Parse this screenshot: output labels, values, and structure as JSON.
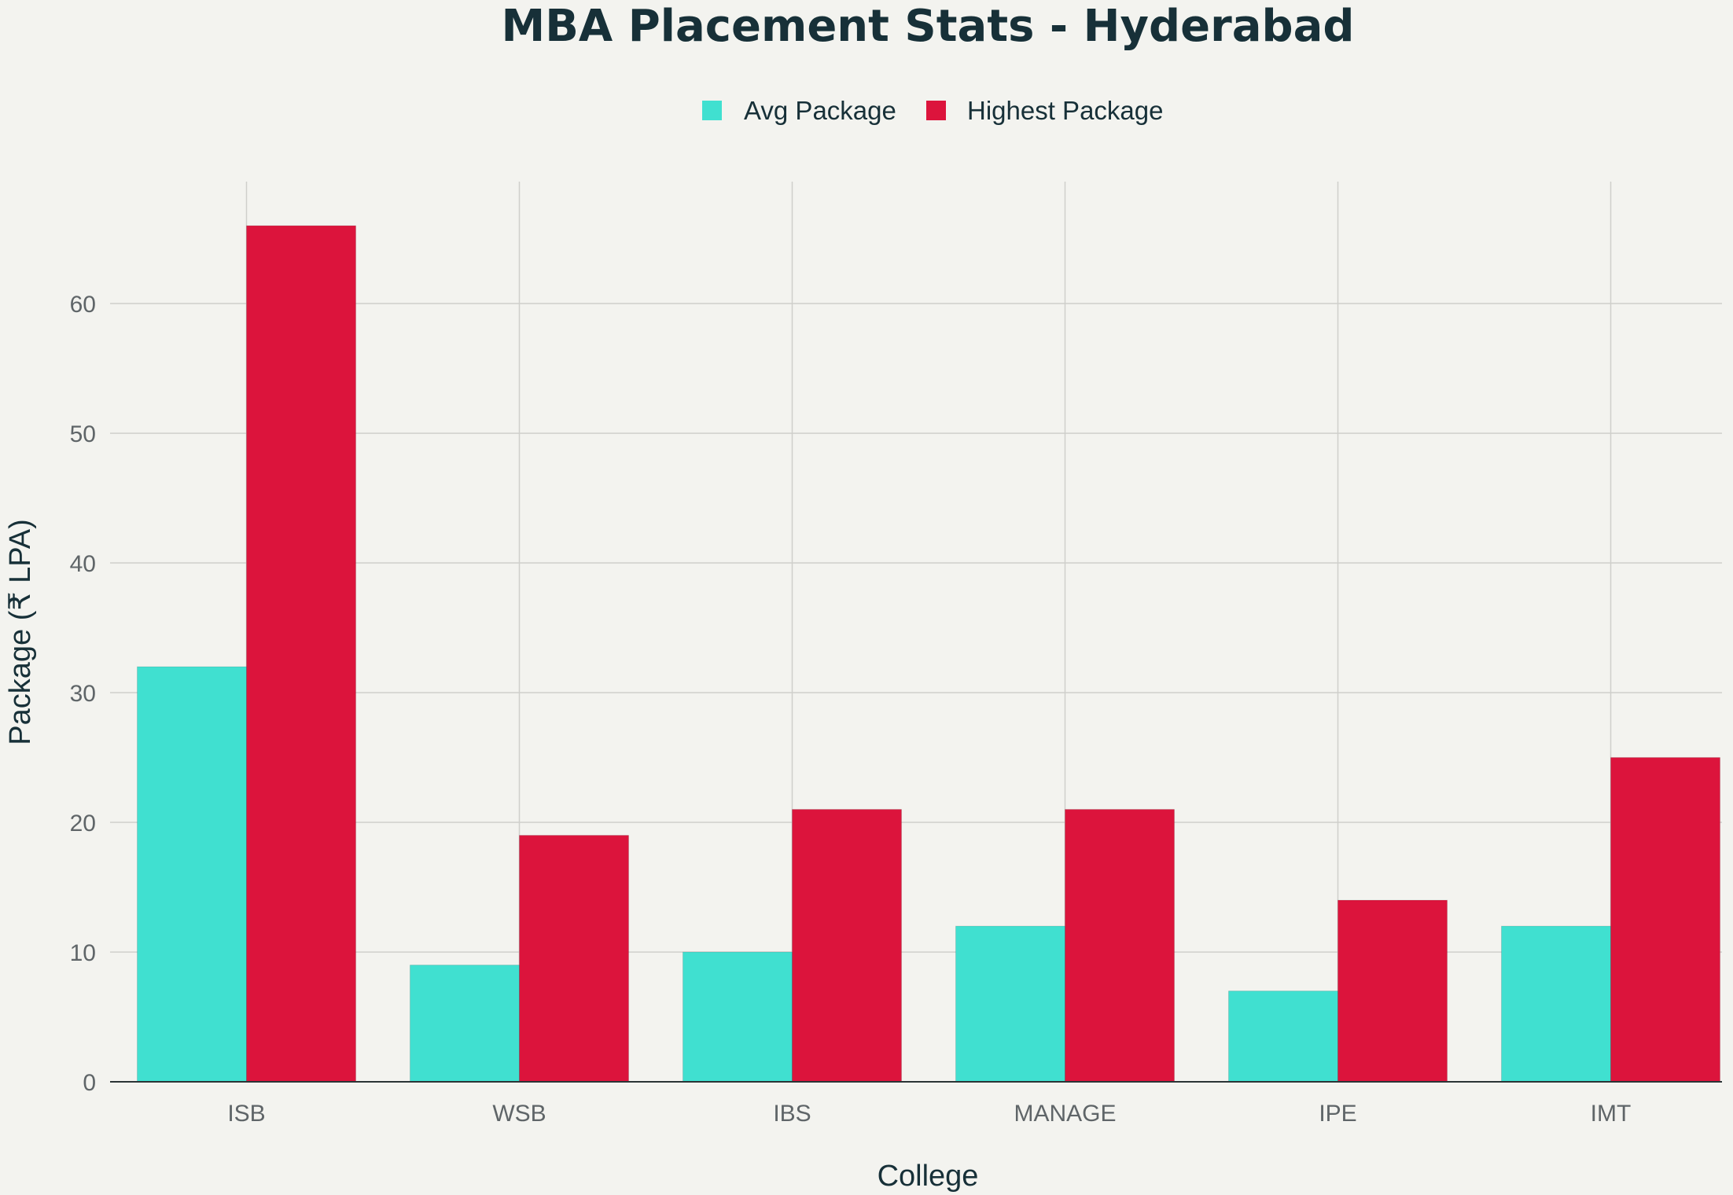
{
  "chart_data": {
    "type": "bar",
    "title": "MBA Placement Stats - Hyderabad",
    "xlabel": "College",
    "ylabel": "Package (₹ LPA)",
    "categories": [
      "ISB",
      "WSB",
      "IBS",
      "MANAGE",
      "IPE",
      "IMT"
    ],
    "series": [
      {
        "name": "Avg Package",
        "values": [
          32,
          9,
          10,
          12,
          7,
          12
        ],
        "color": "#40e0d0"
      },
      {
        "name": "Highest Package",
        "values": [
          66,
          19,
          21,
          21,
          14,
          25
        ],
        "color": "#dc143c"
      }
    ],
    "ylim": [
      0,
      69.4
    ],
    "yticks": [
      0,
      10,
      20,
      30,
      40,
      50,
      60
    ],
    "grid": true,
    "legend_position": "top-center"
  }
}
